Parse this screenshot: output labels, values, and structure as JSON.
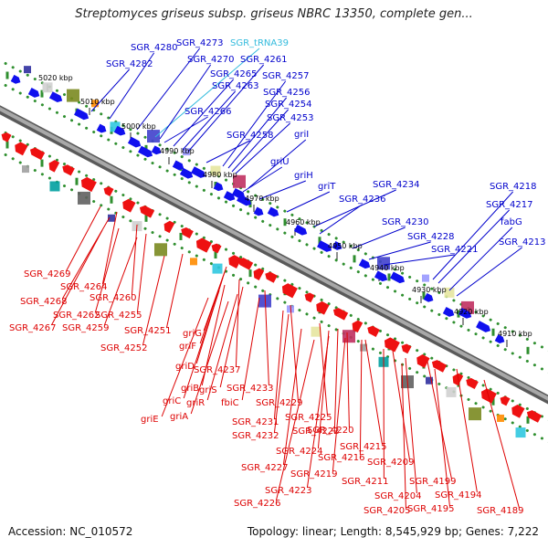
{
  "title": "Streptomyces griseus subsp. griseus NBRC 13350, complete gen...",
  "footer": {
    "accession": "Accession: NC_010572",
    "summary": "Topology: linear; Length: 8,545,929 bp; Genes: 7,222"
  },
  "colors": {
    "forward_label": "#0000cc",
    "reverse_label": "#dd0000",
    "trna_label": "#33bbdd",
    "backbone": "#8c8c8c",
    "dots": "#2f8f2f"
  },
  "kbp_ticks": [
    "5020 kbp",
    "5010 kbp",
    "5000 kbp",
    "4990 kbp",
    "4980 kbp",
    "4970 kbp",
    "4960 kbp",
    "4950 kbp",
    "4940 kbp",
    "4930 kbp",
    "4920 kbp",
    "4910 kbp"
  ],
  "forward_labels": [
    "SGR_4280",
    "SGR_4273",
    "SGR_tRNA39",
    "SGR_4282",
    "SGR_4270",
    "SGR_4261",
    "SGR_4265",
    "SGR_4257",
    "SGR_4263",
    "SGR_4256",
    "SGR_4254",
    "SGR_4266",
    "SGR_4253",
    "SGR_4258",
    "griI",
    "griU",
    "griH",
    "griT",
    "SGR_4234",
    "SGR_4236",
    "SGR_4230",
    "SGR_4228",
    "SGR_4221",
    "SGR_4218",
    "SGR_4217",
    "fabG",
    "SGR_4213"
  ],
  "reverse_labels": [
    "SGR_4269",
    "SGR_4264",
    "SGR_4268",
    "SGR_4260",
    "SGR_4262",
    "SGR_4255",
    "SGR_4267",
    "SGR_4259",
    "SGR_4251",
    "SGR_4252",
    "griG",
    "griF",
    "griD",
    "SGR_4237",
    "griB",
    "griS",
    "SGR_4233",
    "griC",
    "griR",
    "fbiC",
    "SGR_4229",
    "griE",
    "griA",
    "SGR_4231",
    "SGR_4225",
    "SGR_4232",
    "SGR_4222",
    "SGR_4220",
    "SGR_4224",
    "SGR_4215",
    "SGR_4216",
    "SGR_4227",
    "SGR_4219",
    "SGR_4209",
    "SGR_4211",
    "SGR_4223",
    "SGR_4199",
    "SGR_4204",
    "SGR_4194",
    "SGR_4226",
    "SGR_4205",
    "SGR_4195",
    "SGR_4189"
  ]
}
